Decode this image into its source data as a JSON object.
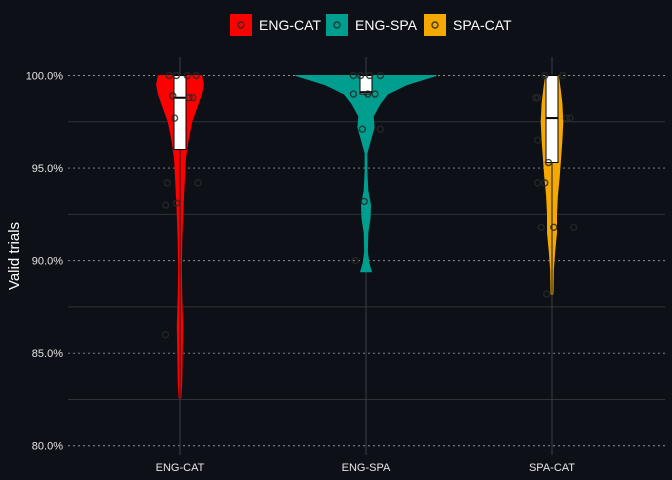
{
  "chart_data": {
    "type": "violin",
    "title": "",
    "xlabel": "",
    "ylabel": "Valid trials",
    "ylim": [
      79.5,
      101
    ],
    "y_ticks": [
      80,
      85,
      90,
      95,
      100
    ],
    "y_tick_labels": [
      "80.0%",
      "85.0%",
      "90.0%",
      "95.0%",
      "100.0%"
    ],
    "categories": [
      "ENG-CAT",
      "ENG-SPA",
      "SPA-CAT"
    ],
    "legend_position": "top",
    "grid": true,
    "series": [
      {
        "name": "ENG-CAT",
        "color": "#ff0000",
        "box": {
          "q1": 96.0,
          "median": 98.8,
          "q3": 100.0,
          "whisker_low": 82.6,
          "whisker_high": 100.0
        },
        "points": [
          {
            "x": -0.06,
            "y": 100.0
          },
          {
            "x": 0.09,
            "y": 100.0
          },
          {
            "x": -0.02,
            "y": 100.0
          },
          {
            "x": 0.04,
            "y": 100.0
          },
          {
            "x": -0.04,
            "y": 98.9
          },
          {
            "x": 0.07,
            "y": 98.8
          },
          {
            "x": 0.05,
            "y": 98.8
          },
          {
            "x": -0.03,
            "y": 97.7
          },
          {
            "x": -0.07,
            "y": 94.2
          },
          {
            "x": 0.1,
            "y": 94.2
          },
          {
            "x": -0.08,
            "y": 93.0
          },
          {
            "x": -0.02,
            "y": 93.1
          },
          {
            "x": -0.08,
            "y": 86.0
          }
        ],
        "density": [
          {
            "y": 82.6,
            "w": 0.01
          },
          {
            "y": 83.5,
            "w": 0.02
          },
          {
            "y": 85.0,
            "w": 0.025
          },
          {
            "y": 86.5,
            "w": 0.03
          },
          {
            "y": 88.0,
            "w": 0.02
          },
          {
            "y": 89.5,
            "w": 0.015
          },
          {
            "y": 91.0,
            "w": 0.02
          },
          {
            "y": 92.5,
            "w": 0.03
          },
          {
            "y": 93.5,
            "w": 0.04
          },
          {
            "y": 94.5,
            "w": 0.05
          },
          {
            "y": 95.5,
            "w": 0.06
          },
          {
            "y": 96.5,
            "w": 0.09
          },
          {
            "y": 97.5,
            "w": 0.13
          },
          {
            "y": 98.3,
            "w": 0.19
          },
          {
            "y": 99.0,
            "w": 0.24
          },
          {
            "y": 99.5,
            "w": 0.26
          },
          {
            "y": 100.0,
            "w": 0.24
          }
        ]
      },
      {
        "name": "ENG-SPA",
        "color": "#009e8f",
        "box": {
          "q1": 99.0,
          "median": 99.1,
          "q3": 100.0,
          "whisker_low": 98.9,
          "whisker_high": 100.0
        },
        "points": [
          {
            "x": -0.07,
            "y": 100.0
          },
          {
            "x": 0.08,
            "y": 100.0
          },
          {
            "x": 0.02,
            "y": 100.0
          },
          {
            "x": -0.03,
            "y": 100.0
          },
          {
            "x": -0.07,
            "y": 99.0
          },
          {
            "x": 0.01,
            "y": 99.0
          },
          {
            "x": 0.05,
            "y": 99.0
          },
          {
            "x": -0.02,
            "y": 97.1
          },
          {
            "x": 0.08,
            "y": 97.1
          },
          {
            "x": -0.01,
            "y": 93.2
          },
          {
            "x": -0.06,
            "y": 90.0
          }
        ],
        "density": [
          {
            "y": 89.4,
            "w": 0.06
          },
          {
            "y": 89.9,
            "w": 0.03
          },
          {
            "y": 90.5,
            "w": 0.015
          },
          {
            "y": 91.5,
            "w": 0.02
          },
          {
            "y": 92.3,
            "w": 0.045
          },
          {
            "y": 93.0,
            "w": 0.05
          },
          {
            "y": 93.8,
            "w": 0.02
          },
          {
            "y": 94.8,
            "w": 0.01
          },
          {
            "y": 95.8,
            "w": 0.01
          },
          {
            "y": 96.5,
            "w": 0.05
          },
          {
            "y": 97.2,
            "w": 0.09
          },
          {
            "y": 97.8,
            "w": 0.08
          },
          {
            "y": 98.5,
            "w": 0.16
          },
          {
            "y": 99.0,
            "w": 0.24
          },
          {
            "y": 99.5,
            "w": 0.45
          },
          {
            "y": 100.0,
            "w": 0.78
          }
        ]
      },
      {
        "name": "SPA-CAT",
        "color": "#f5a800",
        "box": {
          "q1": 95.3,
          "median": 97.7,
          "q3": 100.0,
          "whisker_low": 88.2,
          "whisker_high": 100.0
        },
        "points": [
          {
            "x": -0.04,
            "y": 100.0
          },
          {
            "x": 0.06,
            "y": 100.0
          },
          {
            "x": -0.08,
            "y": 98.8
          },
          {
            "x": -0.09,
            "y": 98.8
          },
          {
            "x": 0.08,
            "y": 97.7
          },
          {
            "x": 0.1,
            "y": 97.7
          },
          {
            "x": -0.08,
            "y": 96.5
          },
          {
            "x": -0.02,
            "y": 95.3
          },
          {
            "x": -0.04,
            "y": 94.2
          },
          {
            "x": -0.08,
            "y": 94.2
          },
          {
            "x": -0.06,
            "y": 91.8
          },
          {
            "x": 0.01,
            "y": 91.8
          },
          {
            "x": 0.12,
            "y": 91.8
          },
          {
            "x": -0.03,
            "y": 88.2
          }
        ],
        "density": [
          {
            "y": 88.2,
            "w": 0.01
          },
          {
            "y": 89.5,
            "w": 0.015
          },
          {
            "y": 90.5,
            "w": 0.03
          },
          {
            "y": 91.5,
            "w": 0.05
          },
          {
            "y": 92.5,
            "w": 0.05
          },
          {
            "y": 93.5,
            "w": 0.06
          },
          {
            "y": 94.5,
            "w": 0.08
          },
          {
            "y": 95.5,
            "w": 0.095
          },
          {
            "y": 96.5,
            "w": 0.11
          },
          {
            "y": 97.5,
            "w": 0.12
          },
          {
            "y": 98.5,
            "w": 0.11
          },
          {
            "y": 99.3,
            "w": 0.09
          },
          {
            "y": 100.0,
            "w": 0.07
          }
        ]
      }
    ]
  },
  "legend": {
    "items": [
      {
        "label": "ENG-CAT",
        "color": "#ff0000"
      },
      {
        "label": "ENG-SPA",
        "color": "#009e8f"
      },
      {
        "label": "SPA-CAT",
        "color": "#f5a800"
      }
    ]
  },
  "colors": {
    "background": "#0d1117",
    "grid_major": "#3a3f45",
    "grid_minor": "#2e3338"
  }
}
